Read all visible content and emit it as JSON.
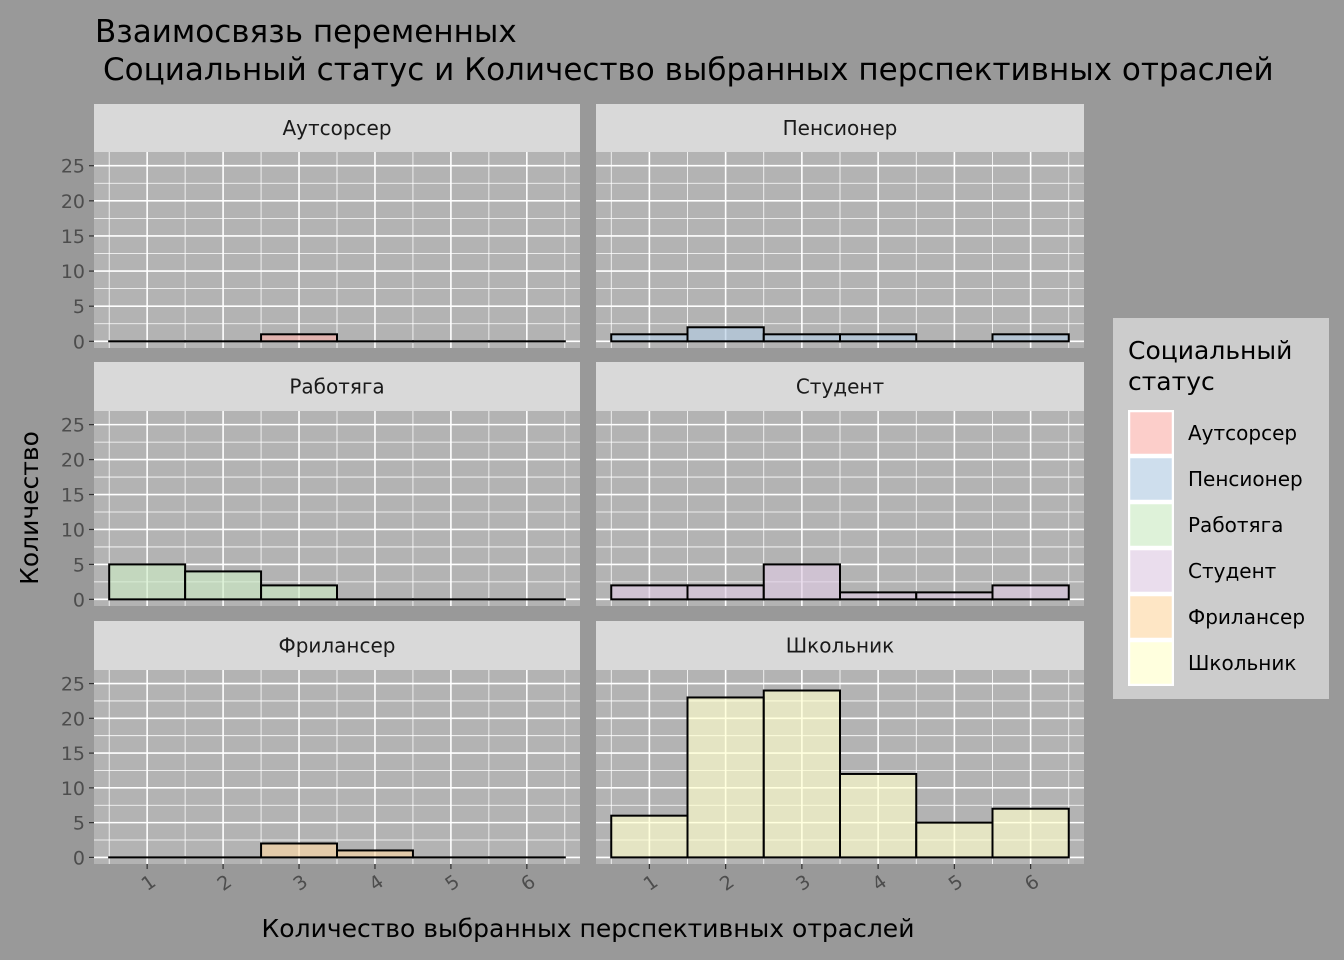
{
  "chart_data": {
    "type": "bar",
    "title_line1": "Взаимосвязь переменных",
    "title_line2": "Социальный статус и Количество выбранных перспективных отраслей",
    "xlabel": "Количество выбранных перспективных отраслей",
    "ylabel": "Количество",
    "x_ticks": [
      "1",
      "2",
      "3",
      "4",
      "5",
      "6"
    ],
    "y_ticks": [
      "0",
      "5",
      "10",
      "15",
      "20",
      "25"
    ],
    "ylim": [
      0,
      27
    ],
    "grid": true,
    "legend": {
      "title_line1": "Социальный",
      "title_line2": "статус",
      "position": "right"
    },
    "categories": [
      1,
      2,
      3,
      4,
      5,
      6
    ],
    "series": [
      {
        "name": "Аутсорсер",
        "color": "#fbb4ae",
        "values": [
          0,
          0,
          1,
          0,
          0,
          0
        ]
      },
      {
        "name": "Пенсионер",
        "color": "#b3cde3",
        "values": [
          1,
          2,
          1,
          1,
          0,
          1
        ]
      },
      {
        "name": "Работяга",
        "color": "#ccebc5",
        "values": [
          5,
          4,
          2,
          0,
          0,
          0
        ]
      },
      {
        "name": "Студент",
        "color": "#decbe4",
        "values": [
          2,
          2,
          5,
          1,
          1,
          2
        ]
      },
      {
        "name": "Фрилансер",
        "color": "#fed9a6",
        "values": [
          0,
          0,
          2,
          1,
          0,
          0
        ]
      },
      {
        "name": "Школьник",
        "color": "#ffffcc",
        "values": [
          6,
          23,
          24,
          12,
          5,
          7
        ]
      }
    ]
  }
}
